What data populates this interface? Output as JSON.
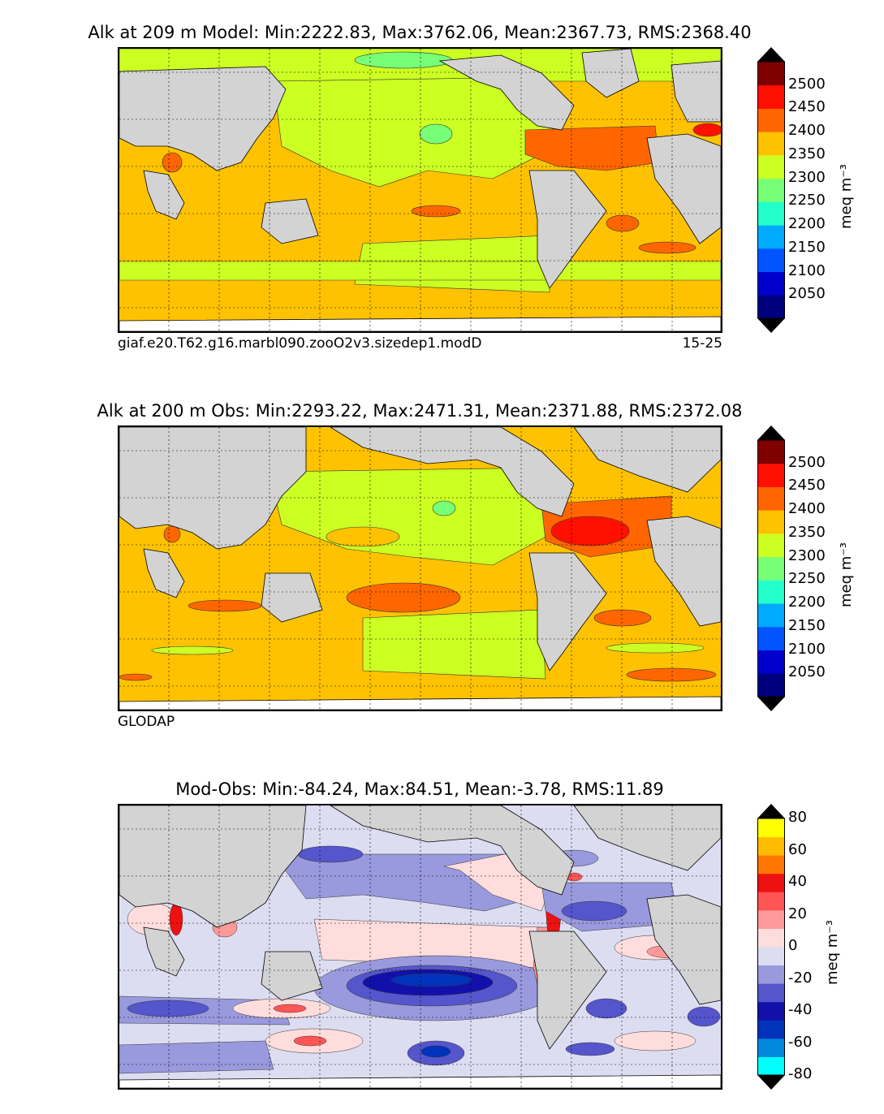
{
  "panels": [
    {
      "title": "Alk at 209 m Model: Min:2222.83, Max:3762.06, Mean:2367.73, RMS:2368.40",
      "subtitle_left": "giaf.e20.T62.g16.marbl090.zooO2v3.sizedep1.modD",
      "subtitle_right": "15-25"
    },
    {
      "title": "Alk at 200 m Obs: Min:2293.22, Max:2471.31, Mean:2371.88, RMS:2372.08",
      "subtitle_left": "GLODAP",
      "subtitle_right": ""
    },
    {
      "title": "Mod-Obs: Min:-84.24, Max:84.51, Mean:-3.78, RMS:11.89",
      "subtitle_left": "",
      "subtitle_right": ""
    }
  ],
  "colorbars": [
    {
      "unit_label": "meq m⁻³",
      "ticks": [
        "2050",
        "2100",
        "2150",
        "2200",
        "2250",
        "2300",
        "2350",
        "2400",
        "2450",
        "2500"
      ],
      "colors": [
        "#00007f",
        "#0000cc",
        "#0055ff",
        "#00aaff",
        "#22ffcc",
        "#77ff77",
        "#ccff22",
        "#ffc200",
        "#ff6600",
        "#ff1000",
        "#800000"
      ],
      "over_color": "#000000",
      "under_color": "#000000"
    },
    {
      "unit_label": "meq m⁻³",
      "ticks": [
        "2050",
        "2100",
        "2150",
        "2200",
        "2250",
        "2300",
        "2350",
        "2400",
        "2450",
        "2500"
      ],
      "colors": [
        "#00007f",
        "#0000cc",
        "#0055ff",
        "#00aaff",
        "#22ffcc",
        "#77ff77",
        "#ccff22",
        "#ffc200",
        "#ff6600",
        "#ff1000",
        "#800000"
      ],
      "over_color": "#000000",
      "under_color": "#000000"
    },
    {
      "unit_label": "meq m⁻³",
      "ticks": [
        "-80",
        "-60",
        "-40",
        "-20",
        "0",
        "20",
        "40",
        "60",
        "80"
      ],
      "colors": [
        "#00ffff",
        "#0088dd",
        "#0033bb",
        "#1111aa",
        "#5555cc",
        "#9999dd",
        "#ddddf2",
        "#ffdddd",
        "#ff9999",
        "#ff5555",
        "#ee1111",
        "#ff7700",
        "#ffbb00",
        "#ffff00"
      ],
      "over_color": "#000000",
      "under_color": "#000000"
    }
  ],
  "map": {
    "land_color": "#d3d3d3",
    "ice_color": "#ffffff",
    "panel1_background": "#ffc200",
    "panel2_background": "#ffc200",
    "panel3_background": "#ddddf2"
  }
}
